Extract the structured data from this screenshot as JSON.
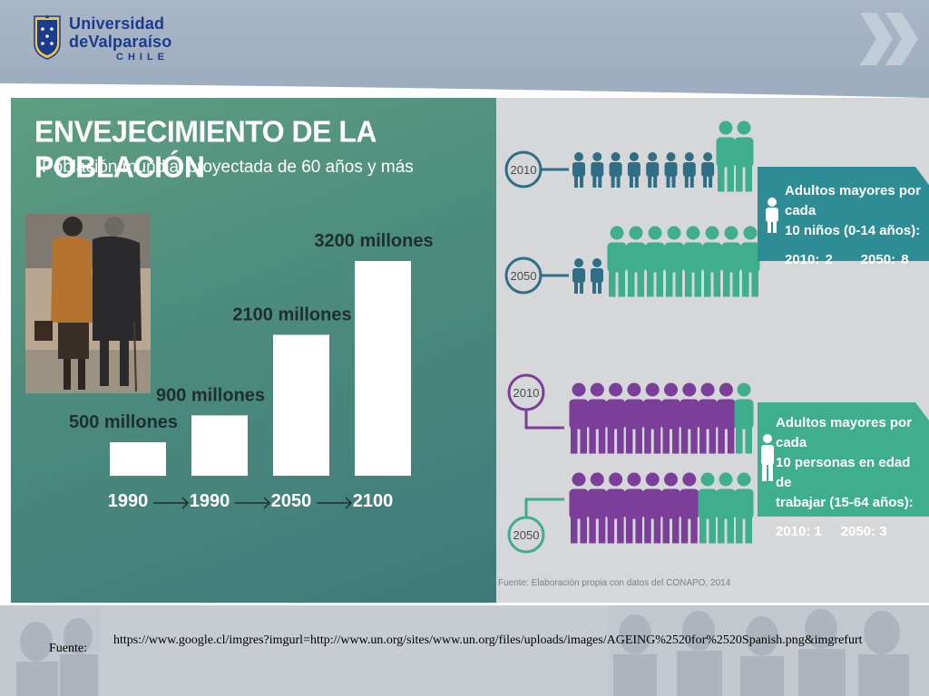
{
  "logo": {
    "line1": "Universidad",
    "line2": "deValparaíso",
    "line3": "CHILE"
  },
  "infographic": {
    "title": "ENVEJECIMIENTO DE LA POBLACIÓN",
    "subtitle": "Población mundial proyectada de 60 años y más",
    "bars": [
      {
        "label": "500 millones",
        "year": "1990",
        "value": 500
      },
      {
        "label": "900 millones",
        "year": "1990",
        "value": 900
      },
      {
        "label": "2100 millones",
        "year": "2050",
        "value": 2100
      },
      {
        "label": "3200 millones",
        "year": "2100",
        "value": 3200
      }
    ]
  },
  "pictogram": {
    "group1": {
      "years": [
        "2010",
        "2050"
      ],
      "heading_lines": [
        "Adultos mayores por cada",
        "10 niños (0-14 años):"
      ],
      "stats": [
        "2010: 2",
        "2050: 8"
      ],
      "row1": {
        "children": 8,
        "adults": 2
      },
      "row2": {
        "children": 2,
        "adults": 8
      }
    },
    "group2": {
      "years": [
        "2010",
        "2050"
      ],
      "heading_lines": [
        "Adultos mayores por cada",
        "10 personas en edad de",
        "trabajar (15-64 años):"
      ],
      "stats": [
        "2010: 1",
        "2050: 3"
      ],
      "row1": {
        "workers": 9,
        "adults": 1
      },
      "row2": {
        "workers": 7,
        "adults": 3
      }
    },
    "source": "Fuente: Elaboración propia con datos del CONAPO, 2014",
    "colors": {
      "blue": "#2f6f86",
      "green": "#3fae8c",
      "purple": "#7b3f9a",
      "panel": "#d6d7d9"
    }
  },
  "footer": {
    "label": "Fuente:",
    "url": "https://www.google.cl/imgres?imgurl=http://www.un.org/sites/www.un.org/files/uploads/images/AGEING%2520for%2520Spanish.png&imgrefurt"
  }
}
